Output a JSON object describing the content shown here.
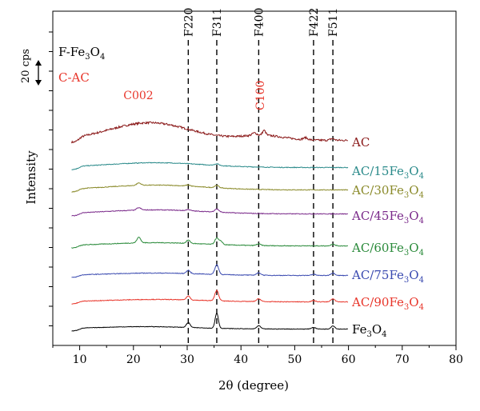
{
  "chart_data": {
    "type": "line",
    "xlabel": "2θ (degree)",
    "ylabel": "Intensity",
    "xlim": [
      5,
      80
    ],
    "xticks": [
      10,
      20,
      30,
      40,
      50,
      60,
      70,
      80
    ],
    "legend": {
      "fe_label": "F-Fe",
      "fe_sub": "3",
      "fe_tail": "O",
      "fe_sub2": "4",
      "fe_color": "#000000",
      "c_label": "C-AC",
      "c_color": "#e8352a"
    },
    "scale_bar": {
      "label": "20 cps"
    },
    "reference_peaks": [
      {
        "label": "F220",
        "x": 30.2,
        "color": "#000000"
      },
      {
        "label": "F311",
        "x": 35.5,
        "color": "#000000"
      },
      {
        "label": "F400",
        "x": 43.3,
        "color": "#000000"
      },
      {
        "label": "F422",
        "x": 53.5,
        "color": "#000000"
      },
      {
        "label": "F511",
        "x": 57.1,
        "color": "#000000"
      }
    ],
    "annotations": [
      {
        "label": "C002",
        "x": 23,
        "color": "#e8352a"
      },
      {
        "label": "C100",
        "x": 44,
        "color": "#e8352a"
      }
    ],
    "series": [
      {
        "name": "AC",
        "name_main": "AC",
        "name_sub": "",
        "name_tail": "",
        "name_sub2": "",
        "color": "#8b1a1a",
        "baseline": 0,
        "broad": [
          [
            23,
            22,
            7.5
          ],
          [
            44,
            6,
            4
          ]
        ],
        "peaks": [
          [
            44.3,
            6,
            0.3
          ],
          [
            42.5,
            3,
            0.4
          ],
          [
            52,
            2.5,
            0.4
          ],
          [
            57,
            2,
            0.4
          ]
        ],
        "noise": 2.4
      },
      {
        "name": "AC/15Fe3O4",
        "name_main": "AC/15Fe",
        "name_sub": "3",
        "name_tail": "O",
        "name_sub2": "4",
        "color": "#2a8a8a",
        "baseline": 0,
        "broad": [
          [
            24,
            6,
            9
          ]
        ],
        "peaks": [
          [
            35.5,
            2,
            0.4
          ]
        ],
        "noise": 0.9
      },
      {
        "name": "AC/30Fe3O4",
        "name_main": "AC/30Fe",
        "name_sub": "3",
        "name_tail": "O",
        "name_sub2": "4",
        "color": "#8a8a2a",
        "baseline": 0,
        "broad": [
          [
            24,
            6,
            9
          ]
        ],
        "peaks": [
          [
            21,
            3,
            0.4
          ],
          [
            35.5,
            3,
            0.4
          ],
          [
            30.2,
            1.5,
            0.4
          ]
        ],
        "noise": 0.9
      },
      {
        "name": "AC/45Fe3O4",
        "name_main": "AC/45Fe",
        "name_sub": "3",
        "name_tail": "O",
        "name_sub2": "4",
        "color": "#7a2a8a",
        "baseline": 0,
        "broad": [
          [
            24,
            5,
            9
          ]
        ],
        "peaks": [
          [
            21,
            3,
            0.4
          ],
          [
            35.5,
            4,
            0.4
          ],
          [
            30.2,
            1.5,
            0.4
          ]
        ],
        "noise": 0.9
      },
      {
        "name": "AC/60Fe3O4",
        "name_main": "AC/60Fe",
        "name_sub": "3",
        "name_tail": "O",
        "name_sub2": "4",
        "color": "#2a8a3a",
        "baseline": 0,
        "broad": [
          [
            24,
            4,
            9
          ]
        ],
        "peaks": [
          [
            21,
            7,
            0.35
          ],
          [
            30.2,
            4,
            0.35
          ],
          [
            35.5,
            8,
            0.35
          ],
          [
            36.3,
            4,
            0.3
          ],
          [
            43.3,
            2,
            0.4
          ],
          [
            57.1,
            2,
            0.4
          ]
        ],
        "noise": 0.9
      },
      {
        "name": "AC/75Fe3O4",
        "name_main": "AC/75Fe",
        "name_sub": "3",
        "name_tail": "O",
        "name_sub2": "4",
        "color": "#3a4ab0",
        "baseline": 0,
        "broad": [
          [
            24,
            3,
            9
          ]
        ],
        "peaks": [
          [
            30.2,
            4,
            0.35
          ],
          [
            35.5,
            12,
            0.35
          ],
          [
            43.3,
            3,
            0.4
          ],
          [
            57.1,
            3,
            0.4
          ],
          [
            53.5,
            1.5,
            0.4
          ]
        ],
        "noise": 0.8
      },
      {
        "name": "AC/90Fe3O4",
        "name_main": "AC/90Fe",
        "name_sub": "3",
        "name_tail": "O",
        "name_sub2": "4",
        "color": "#e8352a",
        "baseline": 0,
        "broad": [
          [
            24,
            3,
            9
          ]
        ],
        "peaks": [
          [
            30.2,
            5,
            0.35
          ],
          [
            35.5,
            13,
            0.35
          ],
          [
            43.3,
            3.5,
            0.4
          ],
          [
            57.1,
            3.5,
            0.4
          ],
          [
            53.5,
            1.5,
            0.4
          ]
        ],
        "noise": 0.8
      },
      {
        "name": "Fe3O4",
        "name_main": "Fe",
        "name_sub": "3",
        "name_tail": "O",
        "name_sub2": "4",
        "color": "#000000",
        "baseline": 0,
        "broad": [
          [
            22,
            3,
            9
          ]
        ],
        "peaks": [
          [
            30.2,
            6,
            0.35
          ],
          [
            35.5,
            19,
            0.3
          ],
          [
            43.3,
            4,
            0.35
          ],
          [
            57.1,
            4,
            0.35
          ],
          [
            53.5,
            2,
            0.4
          ]
        ],
        "noise": 0.6
      }
    ]
  }
}
